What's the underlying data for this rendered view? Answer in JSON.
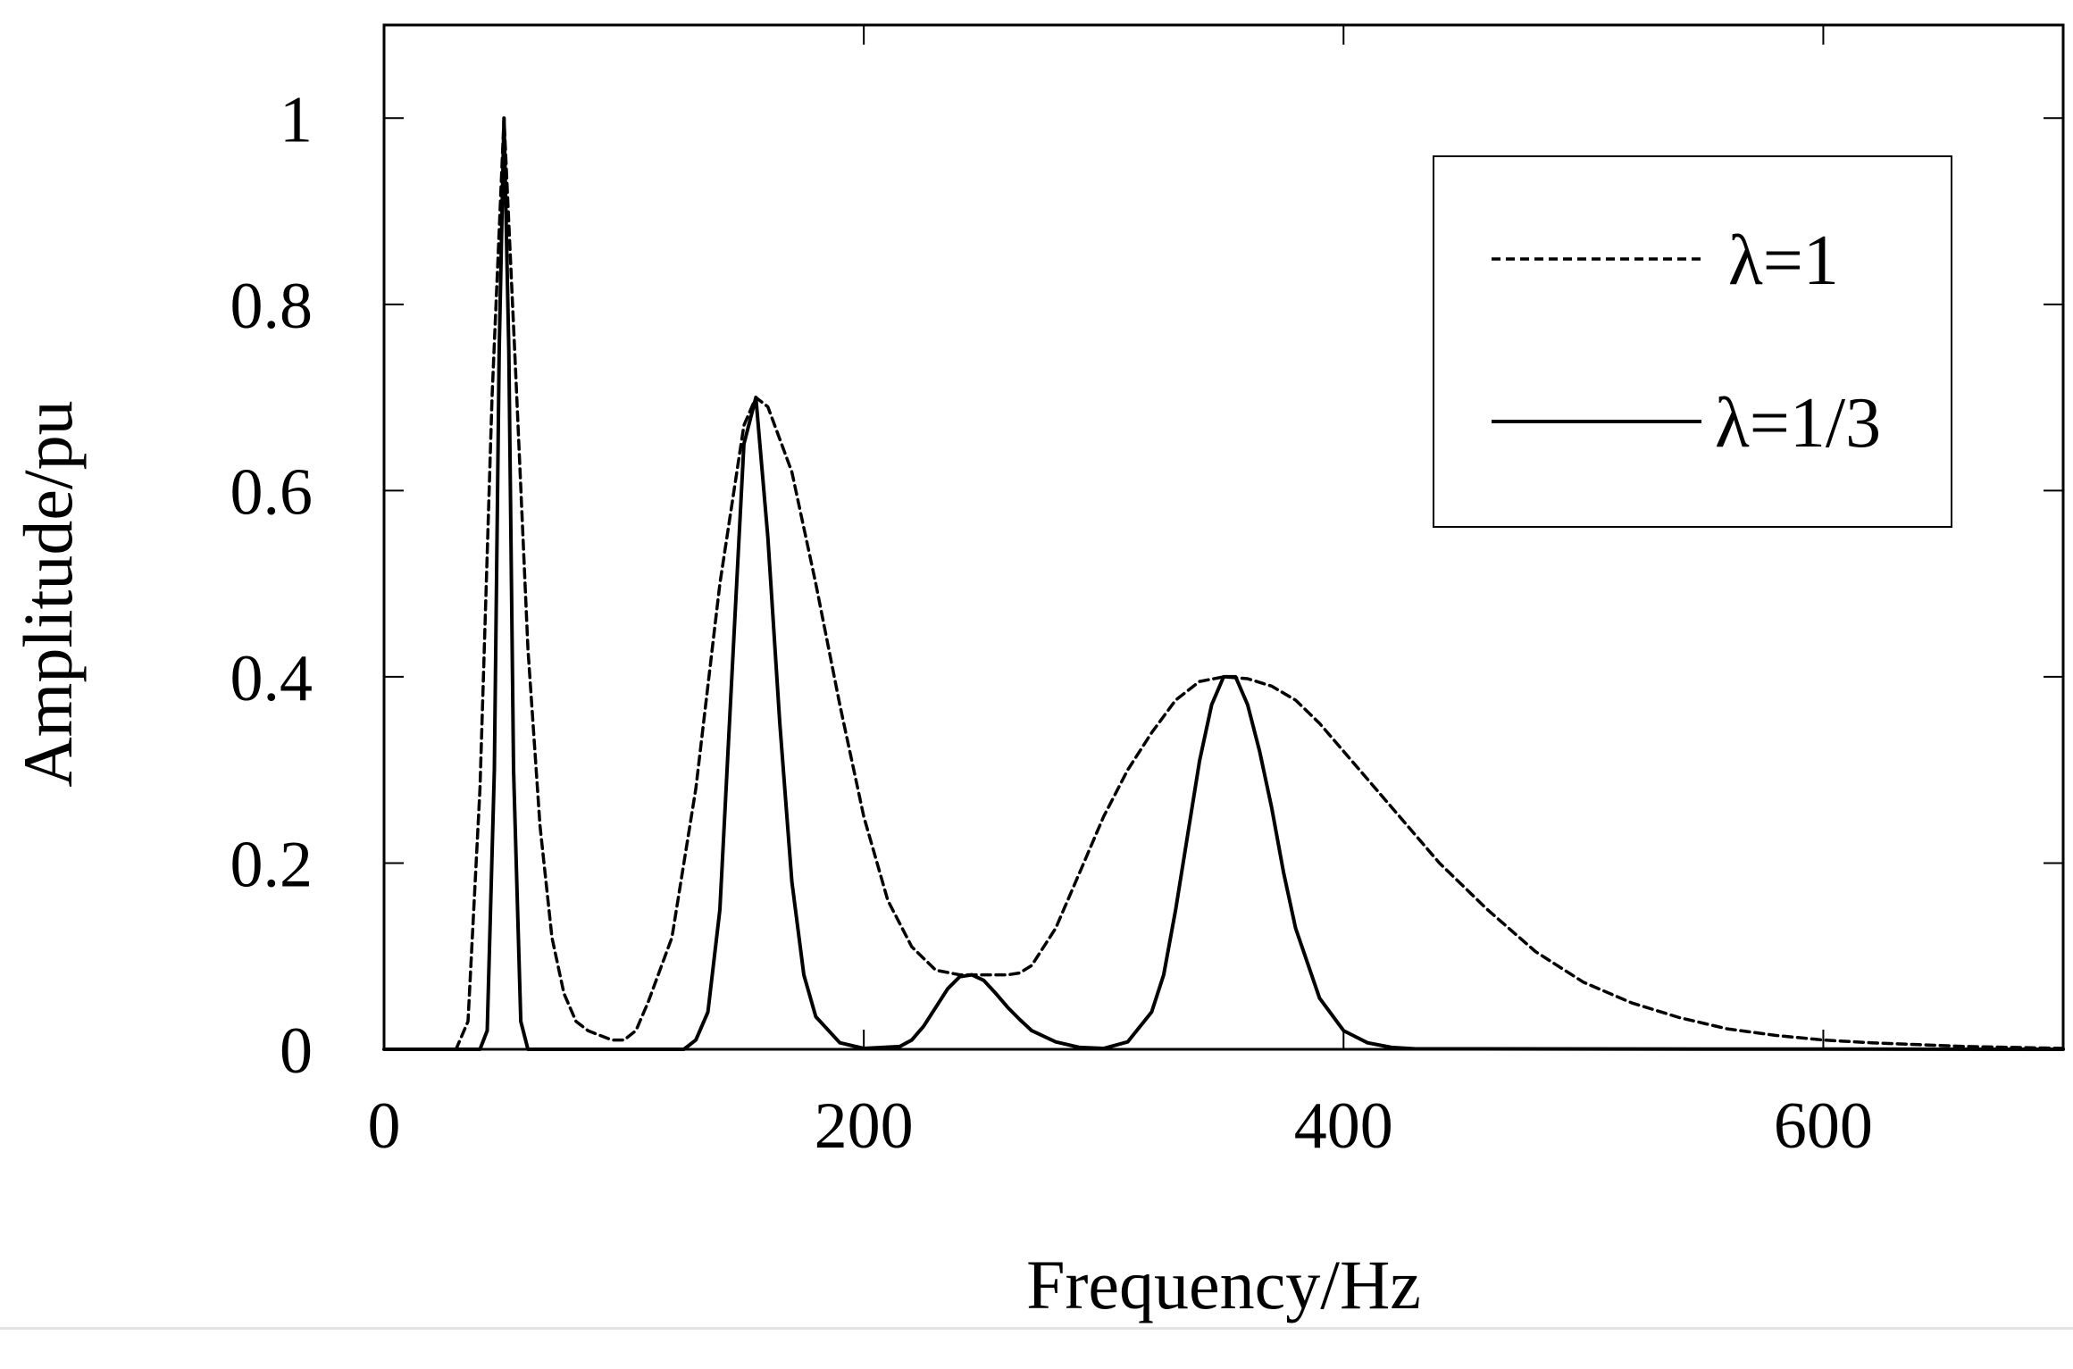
{
  "chart_data": {
    "type": "line",
    "title": "",
    "xlabel": "Frequency/Hz",
    "ylabel": "Amplitude/pu",
    "xlim": [
      0,
      700
    ],
    "ylim": [
      0,
      1.1
    ],
    "x_ticks": [
      0,
      200,
      400,
      600
    ],
    "x_tick_labels": [
      "0",
      "200",
      "400",
      "600"
    ],
    "y_ticks": [
      0,
      0.2,
      0.4,
      0.6,
      0.8,
      1
    ],
    "y_tick_labels": [
      "0",
      "0.2",
      "0.4",
      "0.6",
      "0.8",
      "1"
    ],
    "grid": false,
    "legend": {
      "placement": "top-right",
      "entries": [
        {
          "name": "λ=1",
          "style": "dashed"
        },
        {
          "name": "λ=1/3",
          "style": "solid"
        }
      ]
    },
    "series": [
      {
        "name": "λ=1",
        "style": "dashed",
        "color": "#000000",
        "x": [
          0,
          30,
          35,
          40,
          45,
          50,
          55,
          60,
          65,
          70,
          75,
          80,
          85,
          90,
          95,
          100,
          105,
          110,
          120,
          130,
          140,
          150,
          155,
          160,
          170,
          180,
          190,
          200,
          210,
          220,
          230,
          240,
          250,
          260,
          265,
          270,
          280,
          290,
          300,
          310,
          320,
          330,
          340,
          350,
          360,
          370,
          380,
          390,
          400,
          420,
          440,
          460,
          480,
          500,
          520,
          540,
          560,
          580,
          600,
          620,
          640,
          660,
          680,
          700
        ],
        "y": [
          0,
          0,
          0.03,
          0.28,
          0.7,
          1.0,
          0.72,
          0.43,
          0.24,
          0.12,
          0.06,
          0.03,
          0.02,
          0.015,
          0.01,
          0.01,
          0.02,
          0.05,
          0.12,
          0.28,
          0.5,
          0.67,
          0.7,
          0.69,
          0.62,
          0.5,
          0.37,
          0.25,
          0.16,
          0.11,
          0.085,
          0.08,
          0.08,
          0.08,
          0.082,
          0.09,
          0.13,
          0.19,
          0.25,
          0.3,
          0.34,
          0.375,
          0.395,
          0.4,
          0.398,
          0.39,
          0.375,
          0.35,
          0.32,
          0.26,
          0.2,
          0.15,
          0.105,
          0.072,
          0.05,
          0.034,
          0.022,
          0.015,
          0.01,
          0.007,
          0.005,
          0.003,
          0.002,
          0.001
        ]
      },
      {
        "name": "λ=1/3",
        "style": "solid",
        "color": "#000000",
        "x": [
          0,
          40,
          43,
          46,
          48,
          50,
          52,
          54,
          57,
          60,
          65,
          100,
          125,
          130,
          135,
          140,
          145,
          150,
          155,
          160,
          165,
          170,
          175,
          180,
          190,
          200,
          215,
          220,
          225,
          230,
          235,
          240,
          245,
          250,
          255,
          260,
          265,
          270,
          280,
          290,
          300,
          310,
          320,
          325,
          330,
          335,
          340,
          345,
          350,
          355,
          360,
          365,
          370,
          375,
          380,
          390,
          400,
          410,
          420,
          430,
          700
        ],
        "y": [
          0,
          0,
          0.02,
          0.3,
          0.75,
          1.0,
          0.75,
          0.3,
          0.03,
          0,
          0,
          0,
          0,
          0.01,
          0.04,
          0.15,
          0.4,
          0.65,
          0.7,
          0.55,
          0.35,
          0.18,
          0.08,
          0.035,
          0.007,
          0.001,
          0.003,
          0.01,
          0.025,
          0.045,
          0.065,
          0.078,
          0.08,
          0.074,
          0.06,
          0.045,
          0.032,
          0.02,
          0.008,
          0.002,
          0.001,
          0.008,
          0.04,
          0.08,
          0.15,
          0.23,
          0.31,
          0.37,
          0.4,
          0.4,
          0.37,
          0.32,
          0.26,
          0.19,
          0.13,
          0.055,
          0.02,
          0.007,
          0.002,
          0.0005,
          0
        ]
      }
    ]
  }
}
